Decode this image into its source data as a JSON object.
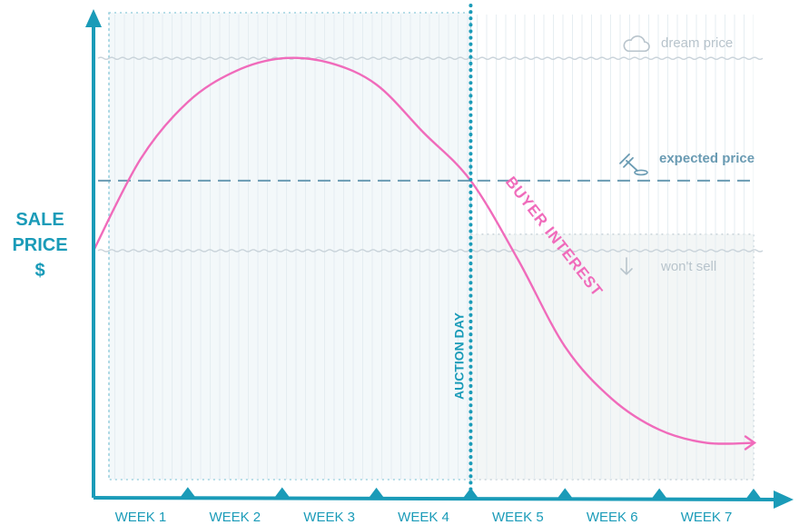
{
  "chart_data": {
    "type": "line",
    "title": "",
    "ylabel_lines": [
      "SALE",
      "PRICE",
      "$"
    ],
    "xlabel": "",
    "categories": [
      "WEEK 1",
      "WEEK 2",
      "WEEK 3",
      "WEEK 4",
      "WEEK 5",
      "WEEK 6",
      "WEEK 7"
    ],
    "xlim": [
      0,
      7
    ],
    "ylim": [
      0,
      10
    ],
    "series": [
      {
        "name": "BUYER INTEREST",
        "color": "#f06bbb",
        "x": [
          0,
          0.5,
          1,
          1.5,
          2,
          2.5,
          3,
          3.5,
          4,
          4.5,
          5,
          5.5,
          6,
          6.5,
          7
        ],
        "y": [
          5.2,
          7.3,
          8.6,
          9.3,
          9.6,
          9.5,
          9.0,
          7.9,
          6.8,
          5.0,
          3.0,
          1.8,
          1.1,
          0.8,
          0.8
        ]
      }
    ],
    "reference_lines": [
      {
        "label": "dream price",
        "y": 9.6,
        "style": "wavy",
        "icon": "cloud-icon",
        "color": "#c9d3da"
      },
      {
        "label": "expected price",
        "y": 6.8,
        "style": "dashed",
        "icon": "gavel-icon",
        "color": "#6a9bb3"
      },
      {
        "label": "won't sell",
        "y": 5.2,
        "style": "wavy",
        "icon": "arrow-down-icon",
        "color": "#c9d3da"
      }
    ],
    "auction_day": {
      "label": "AUCTION DAY",
      "x": 4,
      "color": "#1a9bb8"
    },
    "accent_color": "#1a9bb8",
    "grid": true
  }
}
